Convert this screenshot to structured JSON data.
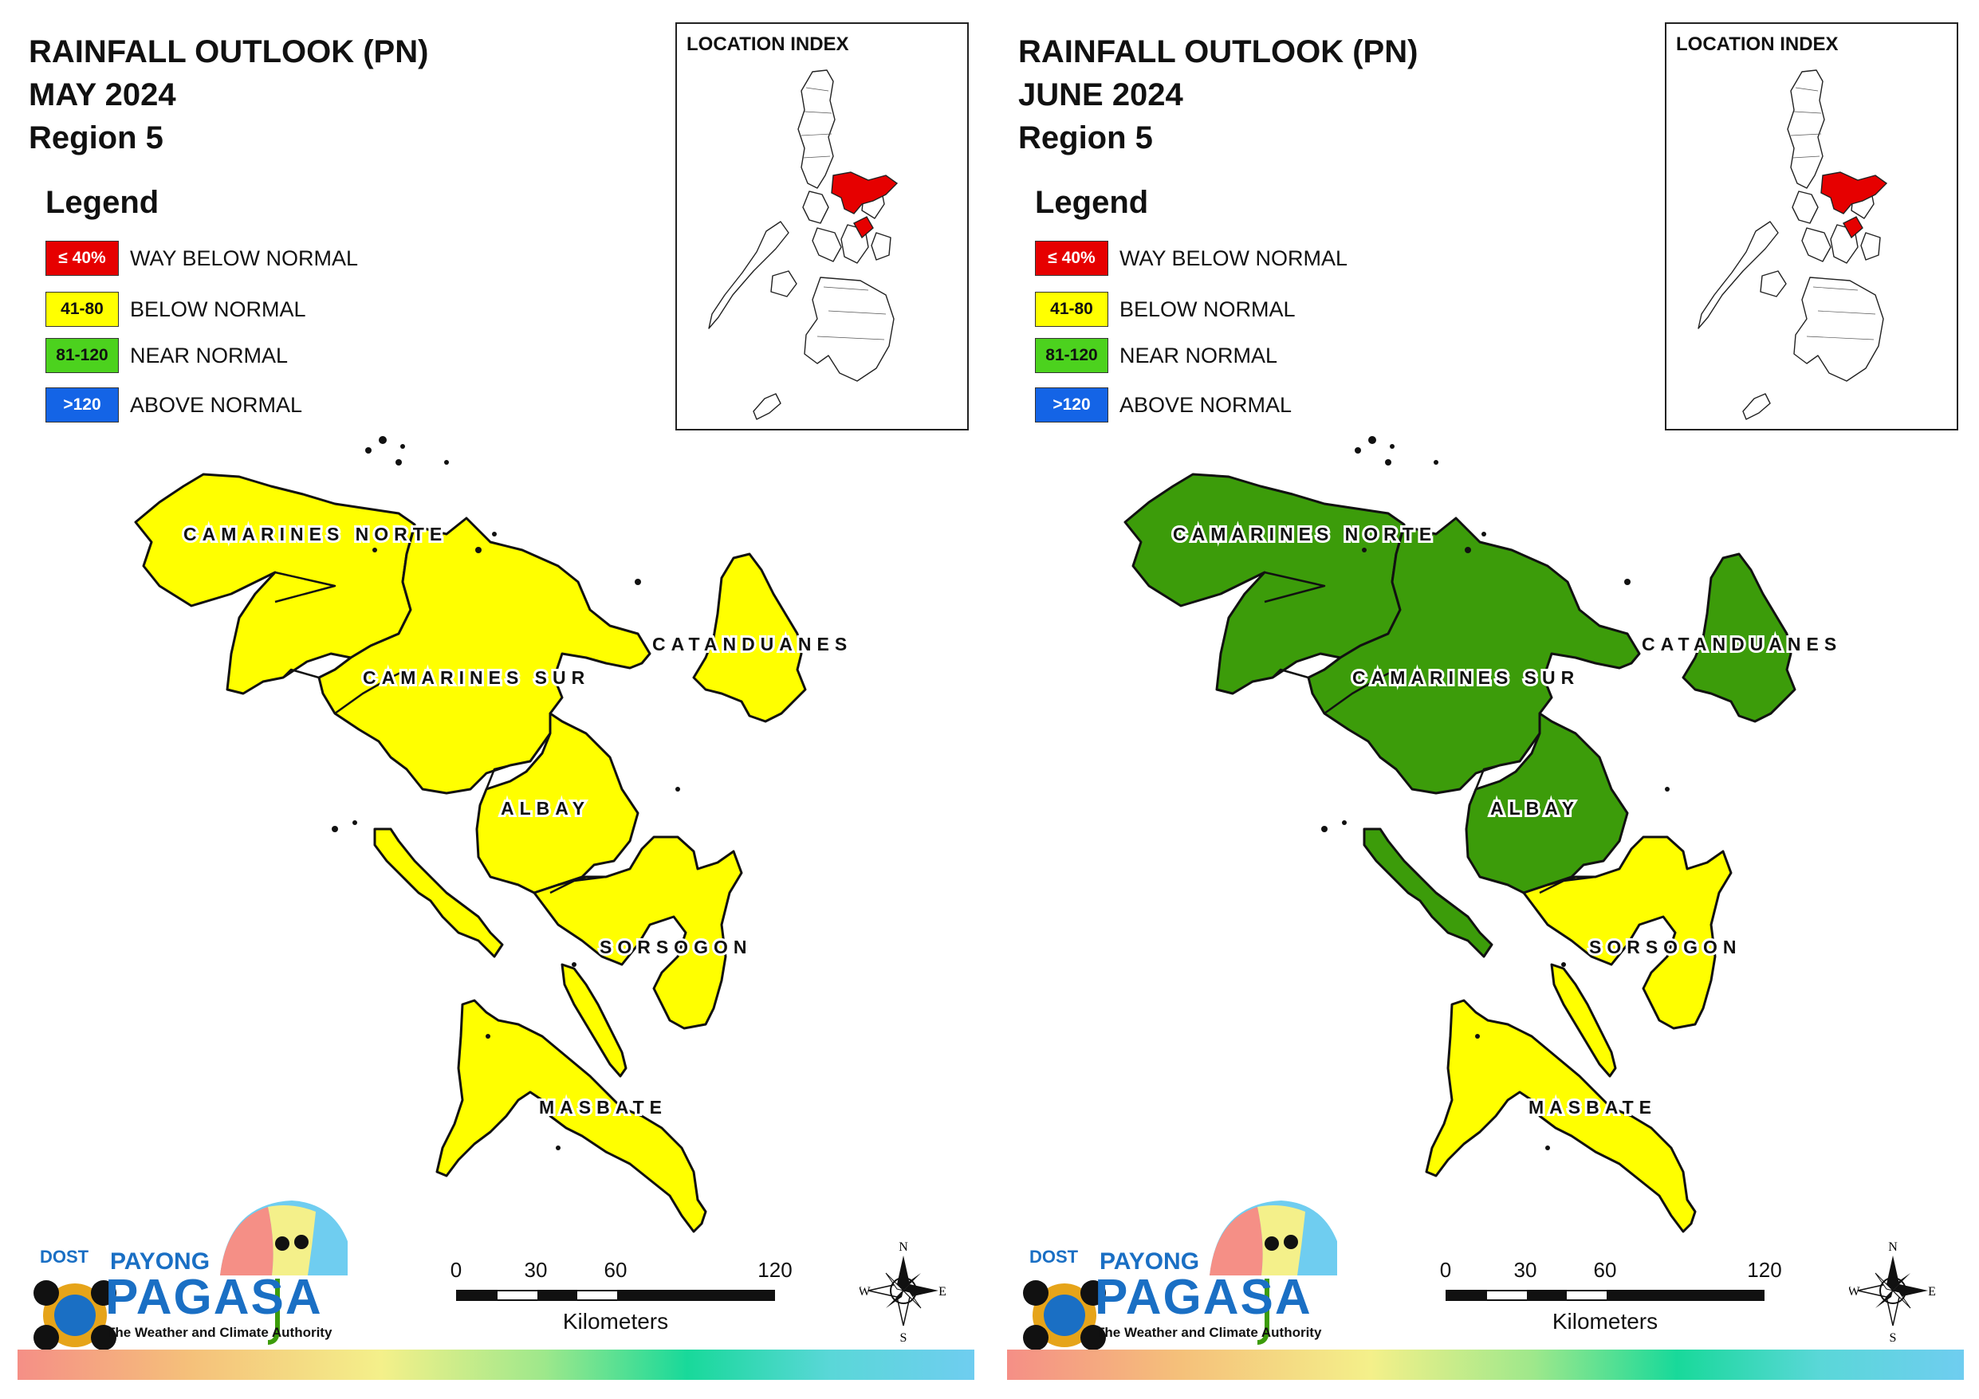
{
  "colors": {
    "way_below": "#e60000",
    "below": "#ffff00",
    "near": "#3c9c0a",
    "above": "#1464e6",
    "legend_near": "#4cd21e"
  },
  "legend": {
    "title": "Legend",
    "items": [
      {
        "range": "≤ 40%",
        "label": "WAY BELOW NORMAL",
        "color": "#e60000",
        "text_color": "#ffffff"
      },
      {
        "range": "41-80",
        "label": "BELOW NORMAL",
        "color": "#ffff00",
        "text_color": "#111111"
      },
      {
        "range": "81-120",
        "label": "NEAR NORMAL",
        "color": "#4cd21e",
        "text_color": "#111111"
      },
      {
        "range": ">120",
        "label": "ABOVE NORMAL",
        "color": "#1464e6",
        "text_color": "#ffffff"
      }
    ]
  },
  "panels": [
    {
      "title_line1": "RAINFALL OUTLOOK (PN)",
      "title_line2": "MAY 2024",
      "title_line3": "Region 5",
      "provinces": {
        "camarines_norte": "below",
        "camarines_sur": "below",
        "catanduanes": "below",
        "albay": "below",
        "sorsogon": "below",
        "masbate": "below",
        "burias": "below",
        "ticao": "below"
      }
    },
    {
      "title_line1": "RAINFALL OUTLOOK (PN)",
      "title_line2": "JUNE 2024",
      "title_line3": "Region 5",
      "provinces": {
        "camarines_norte": "near",
        "camarines_sur": "near",
        "catanduanes": "near",
        "albay": "near",
        "sorsogon": "below",
        "masbate": "below",
        "burias": "near",
        "ticao": "below"
      }
    }
  ],
  "province_labels": {
    "camarines_norte": "CAMARINES NORTE",
    "camarines_sur": "CAMARINES SUR",
    "catanduanes": "CATANDUANES",
    "albay": "ALBAY",
    "sorsogon": "SORSOGON",
    "masbate": "MASBATE"
  },
  "location_index": {
    "title": "LOCATION INDEX",
    "highlight": "#e60000"
  },
  "scale": {
    "ticks": [
      "0",
      "30",
      "60",
      "120"
    ],
    "unit": "Kilometers"
  },
  "compass": {
    "n": "N",
    "s": "S",
    "e": "E",
    "w": "W"
  },
  "logo": {
    "dost": "DOST",
    "payong": "PAYONG",
    "pagasa": "PAGASA",
    "tagline": "The Weather and Climate Authority"
  }
}
